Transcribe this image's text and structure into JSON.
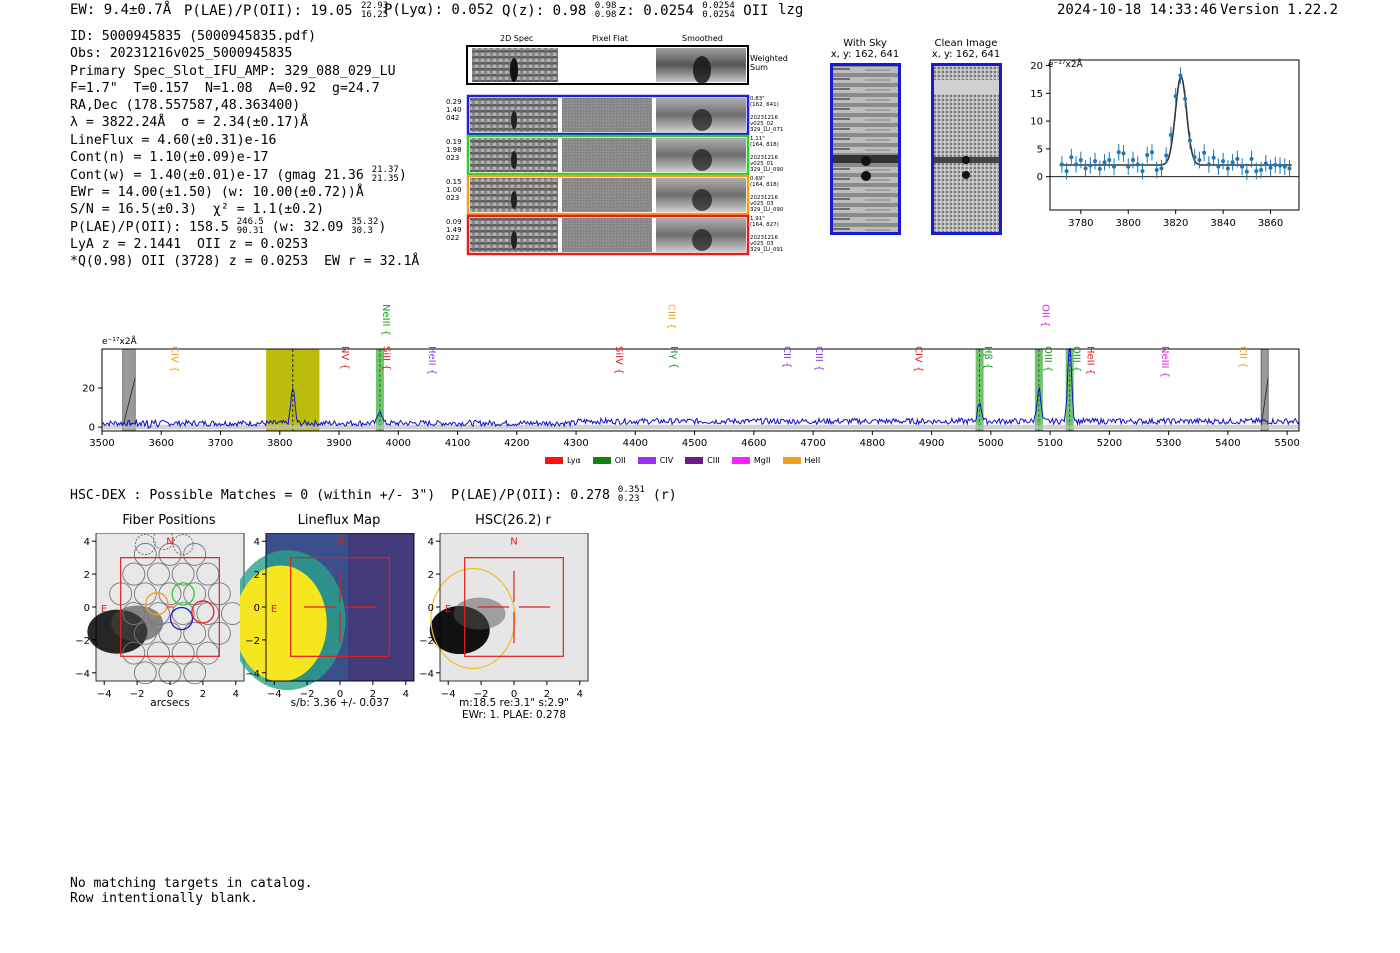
{
  "header": {
    "ew_label": "EW: 9.4±0.7Å",
    "plae_label": "P(LAE)/P(OII): 19.05",
    "plae_hi": "22.93",
    "plae_lo": "16.25",
    "plya_label": "P(Lyα): 0.052",
    "qz_label": "Q(z): 0.98",
    "qz_hi": "0.98",
    "qz_lo": "0.98",
    "z_label": "z: 0.0254",
    "z_hi": "0.0254",
    "z_lo": "0.0254",
    "z_line": "OII",
    "user": "lzg",
    "timestamp": "2024-10-18 14:33:46",
    "version": "Version 1.22.2"
  },
  "info": {
    "id": "ID: 5000945835 (5000945835.pdf)",
    "obs": "Obs: 20231216v025_5000945835",
    "primary": "Primary Spec_Slot_IFU_AMP: 329_088_029_LU",
    "fwhm": "F=1.7\"  T=0.157  N=1.08  A=0.92  g=24.7",
    "radec": "RA,Dec (178.557587,48.363400)",
    "lambda": "λ = 3822.24Å  σ = 2.34(±0.17)Å",
    "lineflux": "LineFlux = 4.60(±0.31)e-16",
    "contn": "Cont(n) = 1.10(±0.09)e-17",
    "contw": "Cont(w) = 1.40(±0.01)e-17 (gmag 21.36",
    "gmag_hi": "21.37",
    "gmag_lo": "21.35",
    "ewr": "EWr = 14.00(±1.50) (w: 10.00(±0.72))Å",
    "sn": "S/N = 16.5(±0.3)  χ² = 1.1(±0.2)",
    "plae": "P(LAE)/P(OII): 158.5",
    "plae_hi": "246.5",
    "plae_lo": "90.31",
    "plae_w": "(w: 32.09",
    "plae_w_hi": "35.32",
    "plae_w_lo": "30.3",
    "lya": "LyA z = 2.1441  OII z = 0.0253",
    "q": "*Q(0.98) OII (3728) z = 0.0253  EW r = 32.1Å"
  },
  "cutouts": {
    "col_titles": [
      "2D Spec",
      "Pixel Flat",
      "Smoothed"
    ],
    "weighted_sum": "Weighted\nSum",
    "rows": [
      {
        "left": "0.29\n1.40\n042",
        "right": "0.83\"\n(162, 641)\n\n20231216\nv025_02\n329_LU_071",
        "color": "#1f1fd8"
      },
      {
        "left": "0.19\n1.98\n023",
        "right": "1.11\"\n(164, 818)\n\n20231216\nv025_01\n329_LU_090",
        "color": "#2ecc2e"
      },
      {
        "left": "0.15\n1.00\n023",
        "right": "0.69\"\n(164, 818)\n\n20231216\nv025_03\n329_LU_090",
        "color": "#f0a020"
      },
      {
        "left": "0.09\n1.49\n022",
        "right": "1.91\"\n(164, 827)\n\n20231216\nv025_03\n329_LU_091",
        "color": "#e02020"
      }
    ],
    "with_sky_title": "With Sky",
    "with_sky_sub": "x, y: 162, 641",
    "clean_title": "Clean Image",
    "clean_sub": "x, y: 162, 641"
  },
  "zoom_chart": {
    "type": "line",
    "ylabel": "e⁻¹⁷x2Å",
    "xlim": [
      3767,
      3872
    ],
    "ylim": [
      -6,
      21
    ],
    "xticks": [
      3780,
      3800,
      3820,
      3840,
      3860
    ],
    "yticks": [
      0,
      5,
      10,
      15,
      20
    ],
    "data_x": [
      3772,
      3774,
      3776,
      3778,
      3780,
      3782,
      3784,
      3786,
      3788,
      3790,
      3792,
      3794,
      3796,
      3798,
      3800,
      3802,
      3804,
      3806,
      3808,
      3810,
      3812,
      3814,
      3816,
      3818,
      3820,
      3822,
      3824,
      3826,
      3828,
      3830,
      3832,
      3834,
      3836,
      3838,
      3840,
      3842,
      3844,
      3846,
      3848,
      3850,
      3852,
      3854,
      3856,
      3858,
      3860,
      3862,
      3864,
      3866,
      3868
    ],
    "data_y": [
      2.2,
      1.0,
      3.5,
      2.2,
      3.0,
      1.5,
      2.0,
      2.8,
      1.4,
      2.6,
      3.0,
      1.8,
      4.4,
      4.2,
      1.8,
      3.0,
      2.2,
      1.0,
      3.9,
      4.4,
      1.2,
      1.5,
      3.8,
      7.5,
      14.5,
      18.2,
      14.0,
      6.5,
      3.5,
      3.0,
      4.3,
      2.2,
      3.4,
      1.8,
      2.8,
      1.5,
      2.6,
      3.2,
      1.8,
      0.9,
      3.2,
      1.0,
      1.2,
      2.4,
      1.6,
      2.1,
      2.0,
      1.8,
      1.5
    ],
    "fit_center": 3822.24,
    "fit_sigma": 2.34,
    "fit_amp": 15.9,
    "fit_base": 2.1
  },
  "spectrum": {
    "type": "line",
    "ylabel": "e⁻¹⁷x2Å",
    "xlim": [
      3500,
      5520
    ],
    "ylim": [
      -2,
      40
    ],
    "xticks": [
      3500,
      3600,
      3700,
      3800,
      3900,
      4000,
      4100,
      4200,
      4300,
      4400,
      4500,
      4600,
      4700,
      4800,
      4900,
      5000,
      5100,
      5200,
      5300,
      5400,
      5500
    ],
    "yticks": [
      0,
      20
    ],
    "peaks": [
      [
        3822,
        18
      ],
      [
        3969,
        7
      ],
      [
        4981,
        10
      ],
      [
        5081,
        17
      ],
      [
        5133,
        40
      ]
    ],
    "highlight": [
      3777,
      3867
    ],
    "mask_bands": [
      [
        3535,
        3556
      ],
      [
        5456,
        5468
      ]
    ],
    "line_bands": [
      3969,
      4981,
      5081,
      5133
    ],
    "lines": [
      {
        "name": "CIV",
        "x": 3612,
        "level": 2,
        "color": "#f0a020"
      },
      {
        "name": "NV",
        "x": 3900,
        "level": 2,
        "color": "#e02020"
      },
      {
        "name": "NeIII",
        "x": 3969,
        "level": 0,
        "color": "#1a9a1a"
      },
      {
        "name": "SiII",
        "x": 3970,
        "level": 2,
        "color": "#e02020"
      },
      {
        "name": "HeII",
        "x": 4047,
        "level": 2,
        "color": "#9040e0"
      },
      {
        "name": "SiIV",
        "x": 4362,
        "level": 2,
        "color": "#e02020"
      },
      {
        "name": "CIII",
        "x": 4451,
        "level": 1,
        "color": "#f0a020"
      },
      {
        "name": "Hγ",
        "x": 4455,
        "level": 2,
        "color": "#1a9a1a"
      },
      {
        "name": "CII",
        "x": 4646,
        "level": 2,
        "color": "#8040c0"
      },
      {
        "name": "CIII",
        "x": 4700,
        "level": 2,
        "color": "#9040e0"
      },
      {
        "name": "CIV",
        "x": 4868,
        "level": 2,
        "color": "#e02020"
      },
      {
        "name": "Hβ",
        "x": 4985,
        "level": 2,
        "color": "#1a9a1a"
      },
      {
        "name": "OII",
        "x": 5082,
        "level": 1,
        "color": "#e020e0"
      },
      {
        "name": "OIII",
        "x": 5086,
        "level": 2,
        "color": "#1a9a1a"
      },
      {
        "name": "OIII",
        "x": 5134,
        "level": 2,
        "color": "#1a9a1a"
      },
      {
        "name": "HeII",
        "x": 5158,
        "level": 2,
        "color": "#e02020"
      },
      {
        "name": "NeIII",
        "x": 5284,
        "level": 2,
        "color": "#e020e0"
      },
      {
        "name": "CII",
        "x": 5415,
        "level": 2,
        "color": "#f0a020"
      }
    ],
    "legend": [
      {
        "name": "Lyα",
        "color": "#ff1010"
      },
      {
        "name": "OII",
        "color": "#108010"
      },
      {
        "name": "CIV",
        "color": "#9a30f0"
      },
      {
        "name": "CIII",
        "color": "#6a1a8a"
      },
      {
        "name": "MgII",
        "color": "#ff20ff"
      },
      {
        "name": "HeII",
        "color": "#f0a020"
      }
    ]
  },
  "hsc": {
    "heading": "HSC-DEX : Possible Matches = 0 (within +/- 3\")  P(LAE)/P(OII): 0.278",
    "heading_hi": "0.351",
    "heading_lo": "0.23",
    "heading_band": "(r)",
    "panels": [
      {
        "title": "Fiber Positions",
        "caption": "arcsecs"
      },
      {
        "title": "Lineflux Map",
        "caption": "s/b: 3.36 +/- 0.037"
      },
      {
        "title": "HSC(26.2) r",
        "caption": "m:18.5  re:3.1\"  s:2.9\"",
        "caption2": "EWr: 1. PLAE: 0.278"
      }
    ],
    "xticks": [
      -4,
      -2,
      0,
      2,
      4
    ],
    "yticks": [
      4,
      2,
      0,
      -2,
      -4
    ],
    "north": "N",
    "east": "E"
  },
  "footer": {
    "line1": "No matching targets in catalog.",
    "line2": "Row intentionally blank."
  }
}
